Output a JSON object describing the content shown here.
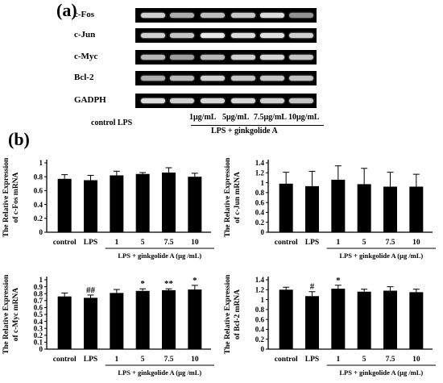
{
  "panel_a": {
    "label": "(a)",
    "rows": [
      {
        "name": "c-Fos",
        "intensity": [
          0.85,
          0.7,
          0.78,
          0.82,
          0.9,
          0.6
        ]
      },
      {
        "name": "c-Jun",
        "intensity": [
          0.85,
          0.8,
          0.95,
          0.9,
          0.92,
          0.85
        ]
      },
      {
        "name": "c-Myc",
        "intensity": [
          0.75,
          0.65,
          0.75,
          0.85,
          0.88,
          0.8
        ]
      },
      {
        "name": "Bcl-2",
        "intensity": [
          0.7,
          0.75,
          0.85,
          0.8,
          0.8,
          0.78
        ]
      },
      {
        "name": "GADPH",
        "intensity": [
          0.9,
          0.85,
          0.88,
          0.88,
          0.85,
          0.8
        ]
      }
    ],
    "lanes": {
      "control_lps": "control LPS",
      "doses": [
        "1μg/mL",
        "5μg/mL",
        "7.5μg/mL",
        "10μg/mL"
      ],
      "group_label": "LPS + ginkgolide A"
    }
  },
  "panel_b": {
    "label": "(b)"
  },
  "chart_data": [
    {
      "type": "bar",
      "ylabel_line1": "The Relative Expression",
      "ylabel_line2": "of c-Fos mRNA",
      "categories": [
        "control",
        "LPS",
        "1",
        "5",
        "7.5",
        "10"
      ],
      "values": [
        0.77,
        0.75,
        0.82,
        0.84,
        0.86,
        0.8
      ],
      "errors": [
        0.06,
        0.07,
        0.06,
        0.02,
        0.07,
        0.05
      ],
      "significance": [
        "",
        "",
        "",
        "",
        "",
        ""
      ],
      "ylim": [
        0,
        1.0
      ],
      "yticks": [
        "0",
        "0.2",
        "0.4",
        "0.6",
        "0.8",
        "1"
      ],
      "group_label": "LPS + ginkgolide A (μg /mL)"
    },
    {
      "type": "bar",
      "ylabel_line1": "The Relative Expression",
      "ylabel_line2": "of c-Jun mRNA",
      "categories": [
        "control",
        "LPS",
        "1",
        "5",
        "7.5",
        "10"
      ],
      "values": [
        0.98,
        0.93,
        1.06,
        0.97,
        0.92,
        0.92
      ],
      "errors": [
        0.23,
        0.3,
        0.28,
        0.32,
        0.29,
        0.25
      ],
      "significance": [
        "",
        "",
        "",
        "",
        "",
        ""
      ],
      "ylim": [
        0,
        1.4
      ],
      "yticks": [
        "0",
        "0.2",
        "0.4",
        "0.6",
        "0.8",
        "1",
        "1.2",
        "1.4"
      ],
      "group_label": "LPS + ginkgolide A (μg /mL)"
    },
    {
      "type": "bar",
      "ylabel_line1": "The Relative Expression",
      "ylabel_line2": "of c-Myc mRNA",
      "categories": [
        "control",
        "LPS",
        "1",
        "5",
        "7.5",
        "10"
      ],
      "values": [
        0.76,
        0.74,
        0.81,
        0.84,
        0.85,
        0.86
      ],
      "errors": [
        0.05,
        0.04,
        0.05,
        0.03,
        0.02,
        0.06
      ],
      "significance": [
        "",
        "##",
        "",
        "*",
        "**",
        "*"
      ],
      "ylim": [
        0,
        1.0
      ],
      "yticks": [
        "0",
        "0.1",
        "0.2",
        "0.3",
        "0.4",
        "0.5",
        "0.6",
        "0.7",
        "0.8",
        "0.9",
        "1"
      ],
      "group_label": "LPS + ginkgolide A (μg /mL)"
    },
    {
      "type": "bar",
      "ylabel_line1": "The Relative Expression",
      "ylabel_line2": "of Bcl-2 mRNA",
      "categories": [
        "control",
        "LPS",
        "1",
        "5",
        "7.5",
        "10"
      ],
      "values": [
        1.2,
        1.07,
        1.22,
        1.16,
        1.18,
        1.15
      ],
      "errors": [
        0.05,
        0.09,
        0.07,
        0.05,
        0.08,
        0.06
      ],
      "significance": [
        "",
        "#",
        "*",
        "",
        "",
        ""
      ],
      "ylim": [
        0,
        1.4
      ],
      "yticks": [
        "0",
        "0.2",
        "0.4",
        "0.6",
        "0.8",
        "1",
        "1.2",
        "1.4"
      ],
      "group_label": "LPS + ginkgolide A (μg /mL)"
    }
  ]
}
